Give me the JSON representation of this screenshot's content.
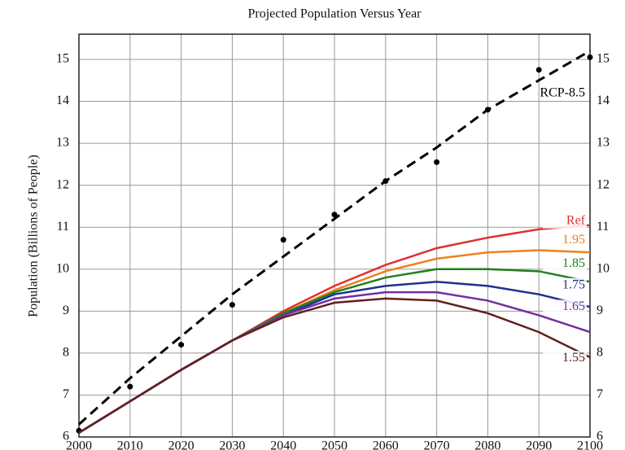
{
  "chart_data": {
    "type": "line",
    "title": "Projected Population Versus Year",
    "ylabel": "Population (Billions of People)",
    "xlim": [
      2000,
      2100
    ],
    "xticks": [
      2000,
      2010,
      2020,
      2030,
      2040,
      2050,
      2060,
      2070,
      2080,
      2090,
      2100
    ],
    "ylim": [
      6,
      15.6
    ],
    "yticks": [
      6,
      7,
      8,
      9,
      10,
      11,
      12,
      13,
      14,
      15
    ],
    "grid": true,
    "x": [
      2000,
      2010,
      2020,
      2030,
      2040,
      2050,
      2060,
      2070,
      2080,
      2090,
      2100
    ],
    "series": [
      {
        "name": "RCP-8.5",
        "color": "#000000",
        "style": "dashed",
        "values": [
          6.3,
          7.4,
          8.4,
          9.4,
          10.3,
          11.2,
          12.1,
          12.9,
          13.8,
          14.5,
          15.2
        ]
      },
      {
        "color": "#000000",
        "style": "markers",
        "values": [
          6.15,
          7.2,
          8.2,
          9.15,
          10.7,
          11.3,
          12.1,
          12.55,
          13.8,
          14.75,
          15.05
        ]
      },
      {
        "name": "Ref",
        "color": "#e03030",
        "values": [
          6.1,
          6.85,
          7.6,
          8.3,
          9.0,
          9.6,
          10.1,
          10.5,
          10.75,
          10.95,
          11.05
        ]
      },
      {
        "name": "1.95",
        "color": "#f08020",
        "values": [
          6.1,
          6.85,
          7.6,
          8.3,
          8.95,
          9.5,
          9.95,
          10.25,
          10.4,
          10.45,
          10.4
        ]
      },
      {
        "name": "1.85",
        "color": "#208020",
        "values": [
          6.1,
          6.85,
          7.6,
          8.3,
          8.95,
          9.45,
          9.8,
          10.0,
          10.0,
          9.95,
          9.7
        ]
      },
      {
        "name": "1.75",
        "color": "#203090",
        "values": [
          6.1,
          6.85,
          7.6,
          8.3,
          8.9,
          9.4,
          9.6,
          9.7,
          9.6,
          9.4,
          9.1
        ]
      },
      {
        "name": "1.65",
        "color": "#7030a0",
        "values": [
          6.1,
          6.85,
          7.6,
          8.3,
          8.9,
          9.3,
          9.45,
          9.45,
          9.25,
          8.9,
          8.5
        ]
      },
      {
        "name": "1.55",
        "color": "#602020",
        "values": [
          6.1,
          6.85,
          7.6,
          8.3,
          8.85,
          9.2,
          9.3,
          9.25,
          8.95,
          8.5,
          7.9
        ]
      }
    ]
  }
}
